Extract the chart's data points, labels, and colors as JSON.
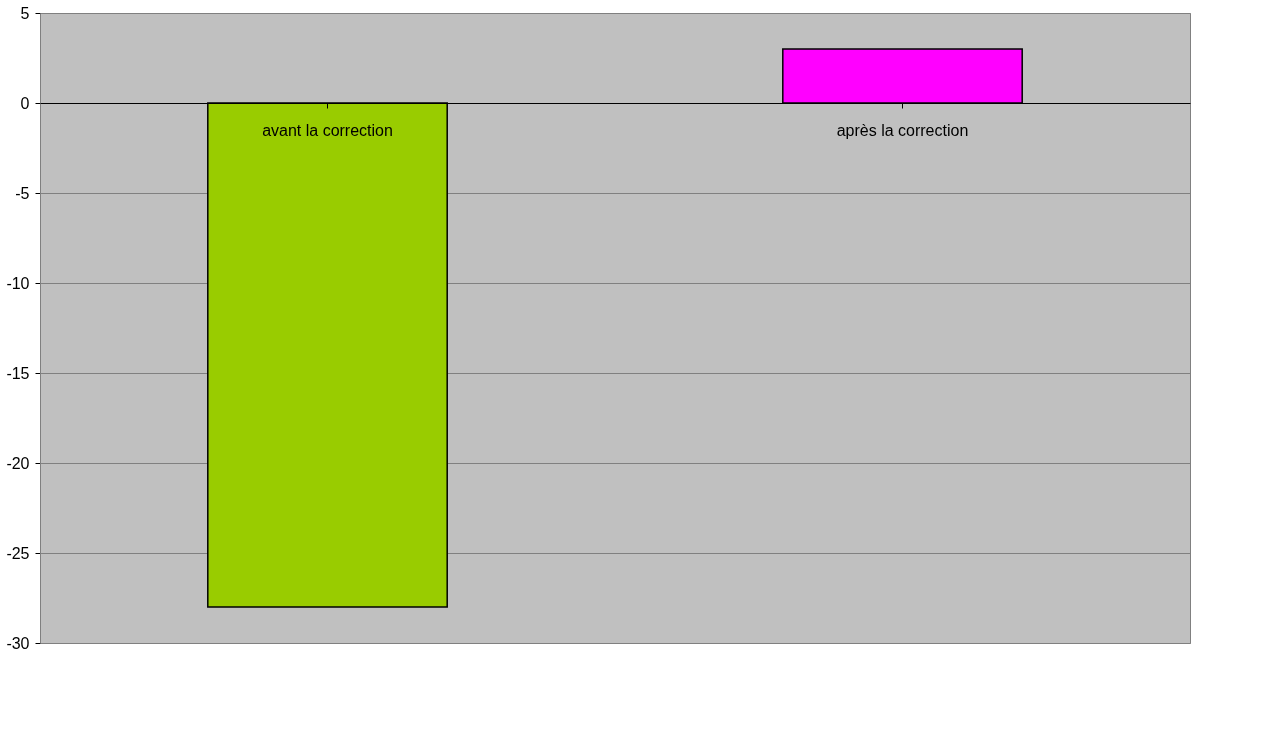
{
  "chart_data": {
    "type": "bar",
    "categories": [
      "avant la correction",
      "après la correction"
    ],
    "values": [
      -28,
      3
    ],
    "colors": [
      "#99cc00",
      "#ff00ff"
    ],
    "ylim": [
      -30,
      5
    ],
    "yticks": [
      -30,
      -25,
      -20,
      -15,
      -10,
      -5,
      0,
      5
    ],
    "grid": "y"
  }
}
